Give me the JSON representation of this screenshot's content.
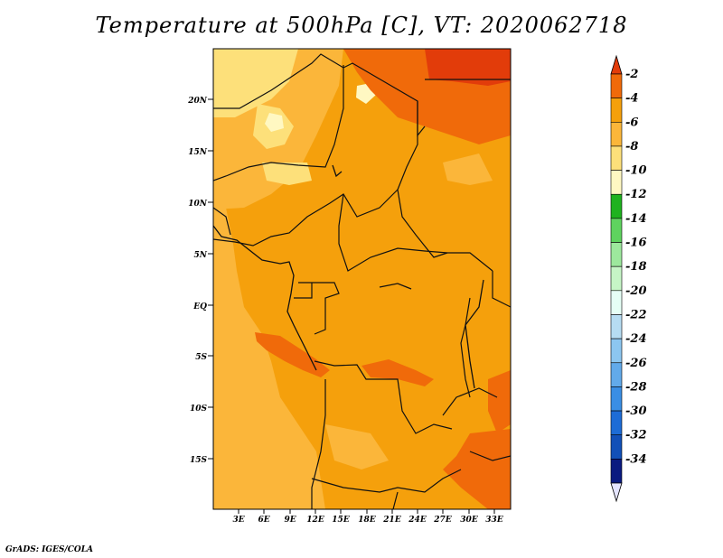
{
  "title": "Temperature at 500hPa [C], VT: 2020062718",
  "footer": "GrADS: IGES/COLA",
  "lat_labels": [
    "20N",
    "15N",
    "10N",
    "5N",
    "EQ",
    "5S",
    "10S",
    "15S"
  ],
  "lon_labels": [
    "3E",
    "6E",
    "9E",
    "12E",
    "15E",
    "18E",
    "21E",
    "24E",
    "27E",
    "30E",
    "33E"
  ],
  "colorbar": {
    "labels": [
      "-2",
      "-4",
      "-6",
      "-8",
      "-10",
      "-12",
      "-14",
      "-16",
      "-18",
      "-20",
      "-22",
      "-24",
      "-26",
      "-28",
      "-30",
      "-32",
      "-34"
    ],
    "colors": [
      "#e23c0a",
      "#f06a0a",
      "#f5a00c",
      "#fbb63a",
      "#fde07a",
      "#fff8c2",
      "#1fb21f",
      "#5fd35f",
      "#9de89d",
      "#c6f5c6",
      "#e6fff6",
      "#b6dcf2",
      "#8cc6f0",
      "#62aaea",
      "#3a8ee4",
      "#1d6cd6",
      "#1250b8",
      "#0a1a80",
      "#e4e4ff"
    ]
  }
}
